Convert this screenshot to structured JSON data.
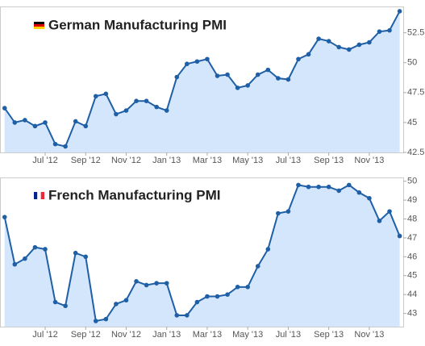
{
  "chart_data": [
    {
      "type": "line",
      "title": "German Manufacturing PMI",
      "color": "#1f5fa6",
      "fill": "#d4e6fc",
      "categories": [
        null,
        null,
        null,
        null,
        "Jul '12",
        null,
        null,
        null,
        "Sep '12",
        null,
        null,
        null,
        "Nov '12",
        null,
        null,
        null,
        "Jan '13",
        null,
        null,
        null,
        "Mar '13",
        null,
        null,
        null,
        "May '13",
        null,
        null,
        null,
        "Jul '13",
        null,
        null,
        null,
        "Sep '13",
        null,
        null,
        null,
        "Nov '13",
        null,
        null,
        null
      ],
      "values": [
        46.2,
        45.0,
        45.2,
        44.7,
        45.0,
        43.2,
        43.0,
        45.1,
        44.7,
        47.2,
        47.4,
        45.7,
        46.0,
        46.8,
        46.8,
        46.3,
        46.0,
        48.8,
        49.9,
        50.1,
        50.3,
        48.9,
        49.0,
        47.9,
        48.1,
        49.0,
        49.4,
        48.7,
        48.6,
        50.3,
        50.7,
        52.0,
        51.8,
        51.3,
        51.1,
        51.5,
        51.7,
        52.6,
        52.7,
        54.3
      ],
      "ylim": [
        42.5,
        54.7
      ],
      "yticks": [
        42.5,
        45,
        47.5,
        50,
        52.5
      ]
    },
    {
      "type": "line",
      "title": "French Manufacturing PMI",
      "color": "#1f5fa6",
      "fill": "#d4e6fc",
      "categories": [
        null,
        null,
        null,
        null,
        "Jul '12",
        null,
        null,
        null,
        "Sep '12",
        null,
        null,
        null,
        "Nov '12",
        null,
        null,
        null,
        "Jan '13",
        null,
        null,
        null,
        "Mar '13",
        null,
        null,
        null,
        "May '13",
        null,
        null,
        null,
        "Jul '13",
        null,
        null,
        null,
        "Sep '13",
        null,
        null,
        null,
        "Nov '13",
        null,
        null,
        null
      ],
      "values": [
        48.1,
        45.6,
        45.9,
        46.5,
        46.4,
        43.6,
        43.4,
        46.2,
        46.0,
        42.6,
        42.7,
        43.5,
        43.7,
        44.7,
        44.5,
        44.6,
        44.6,
        42.9,
        42.9,
        43.6,
        43.9,
        43.9,
        44.0,
        44.4,
        44.4,
        45.5,
        46.4,
        48.3,
        48.4,
        49.8,
        49.7,
        49.7,
        49.7,
        49.5,
        49.8,
        49.4,
        49.1,
        47.9,
        48.4,
        47.1
      ],
      "ylim": [
        42.3,
        50.2
      ],
      "yticks": [
        43,
        44,
        45,
        46,
        47,
        48,
        49,
        50
      ]
    }
  ]
}
